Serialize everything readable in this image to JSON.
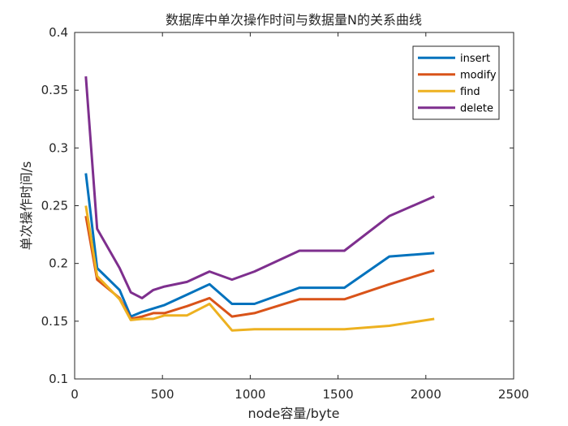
{
  "chart_data": {
    "type": "line",
    "title": "数据库中单次操作时间与数据量N的关系曲线",
    "xlabel": "node容量/byte",
    "ylabel": "单次操作时间/s",
    "xlim": [
      0,
      2500
    ],
    "ylim": [
      0.1,
      0.4
    ],
    "xticks": [
      0,
      500,
      1000,
      1500,
      2000,
      2500
    ],
    "xtick_labels": [
      "0",
      "500",
      "1000",
      "1500",
      "2000",
      "2500"
    ],
    "yticks": [
      0.1,
      0.15,
      0.2,
      0.25,
      0.3,
      0.35,
      0.4
    ],
    "ytick_labels": [
      "0.1",
      "0.15",
      "0.2",
      "0.25",
      "0.3",
      "0.35",
      "0.4"
    ],
    "grid": false,
    "legend_position": "top-right",
    "x": [
      64,
      128,
      256,
      320,
      384,
      448,
      512,
      640,
      768,
      896,
      1024,
      1280,
      1536,
      1792,
      2048
    ],
    "series": [
      {
        "name": "insert",
        "color": "#0072BD",
        "values": [
          0.278,
          0.196,
          0.177,
          0.154,
          0.158,
          0.161,
          0.164,
          0.173,
          0.182,
          0.165,
          0.165,
          0.179,
          0.179,
          0.206,
          0.209
        ]
      },
      {
        "name": "modify",
        "color": "#D95319",
        "values": [
          0.241,
          0.186,
          0.17,
          0.152,
          0.154,
          0.157,
          0.157,
          0.163,
          0.17,
          0.154,
          0.157,
          0.169,
          0.169,
          0.182,
          0.194
        ]
      },
      {
        "name": "find",
        "color": "#EDB120",
        "values": [
          0.25,
          0.189,
          0.169,
          0.151,
          0.152,
          0.152,
          0.155,
          0.155,
          0.165,
          0.142,
          0.143,
          0.143,
          0.143,
          0.146,
          0.152
        ]
      },
      {
        "name": "delete",
        "color": "#7E2F8E",
        "values": [
          0.362,
          0.23,
          0.196,
          0.175,
          0.17,
          0.177,
          0.18,
          0.184,
          0.193,
          0.186,
          0.193,
          0.211,
          0.211,
          0.241,
          0.258
        ]
      }
    ]
  }
}
